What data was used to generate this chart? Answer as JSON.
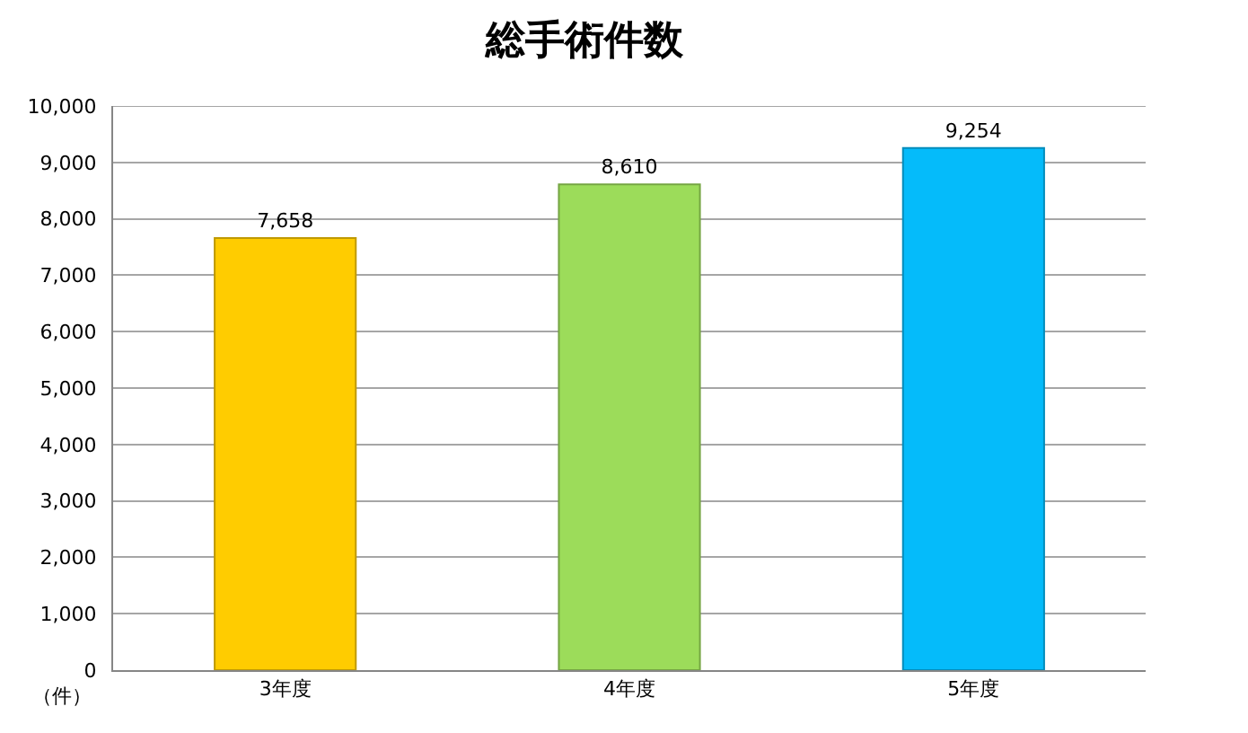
{
  "chart_data": {
    "type": "bar",
    "title": "総手術件数",
    "ylabel": "（件）",
    "categories": [
      "3年度",
      "4年度",
      "5年度"
    ],
    "values": [
      7658,
      8610,
      9254
    ],
    "value_labels": [
      "7,658",
      "8,610",
      "9,254"
    ],
    "colors": [
      "#ffcc00",
      "#9cdc5a",
      "#05bbfa"
    ],
    "ylim": [
      0,
      10000
    ],
    "yticks": [
      {
        "value": 0,
        "label": "0"
      },
      {
        "value": 1000,
        "label": "1,000"
      },
      {
        "value": 2000,
        "label": "2,000"
      },
      {
        "value": 3000,
        "label": "3,000"
      },
      {
        "value": 4000,
        "label": "4,000"
      },
      {
        "value": 5000,
        "label": "5,000"
      },
      {
        "value": 6000,
        "label": "6,000"
      },
      {
        "value": 7000,
        "label": "7,000"
      },
      {
        "value": 8000,
        "label": "8,000"
      },
      {
        "value": 9000,
        "label": "9,000"
      },
      {
        "value": 10000,
        "label": "10,000"
      }
    ],
    "grid": "y"
  }
}
